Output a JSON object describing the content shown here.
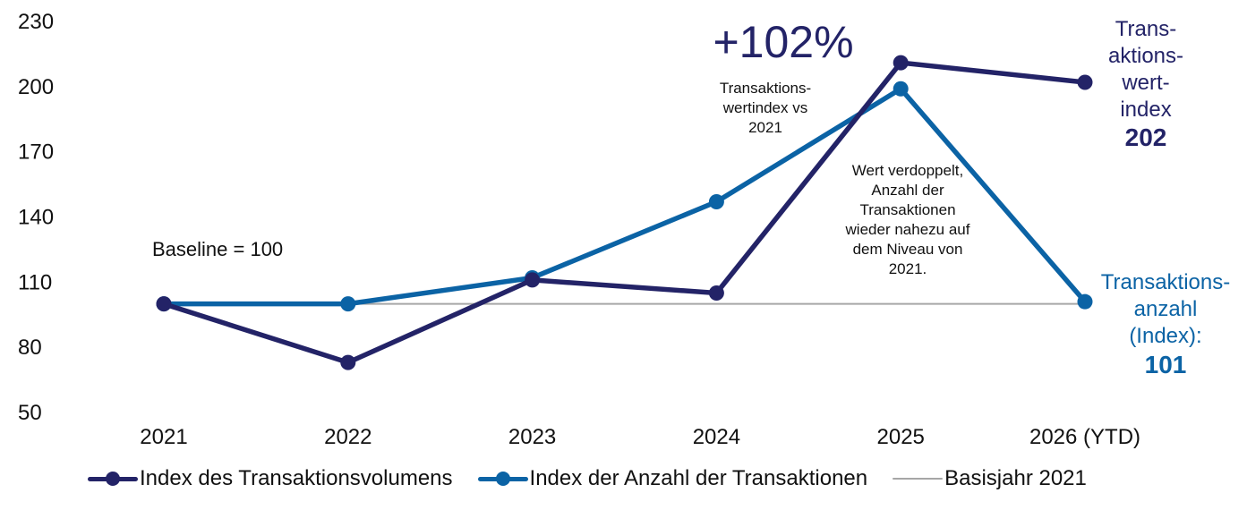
{
  "colors": {
    "volume": "#232367",
    "count": "#0B63A5",
    "baseline": "#A6A6A6",
    "text": "#111111"
  },
  "chart_data": {
    "type": "line",
    "categories": [
      "2021",
      "2022",
      "2023",
      "2024",
      "2025",
      "2026 (YTD)"
    ],
    "ylim": [
      50,
      230
    ],
    "yticks": [
      50,
      80,
      110,
      140,
      170,
      200,
      230
    ],
    "grid": false,
    "legend_position": "bottom",
    "series": [
      {
        "name": "Index des Transaktionsvolumens",
        "values": [
          100,
          73,
          111,
          105,
          211,
          202
        ],
        "color_key": "volume",
        "markers": true
      },
      {
        "name": "Index der Anzahl der Transaktionen",
        "values": [
          100,
          100,
          112,
          147,
          199,
          101
        ],
        "color_key": "count",
        "markers": true
      },
      {
        "name": "Basisjahr 2021",
        "values": [
          100,
          100,
          100,
          100,
          100,
          100
        ],
        "color_key": "baseline",
        "markers": false
      }
    ]
  },
  "annotations": {
    "baseline_text": "Baseline = 100",
    "big_value": "+102%",
    "big_value_caption": "Transaktions-\nwertindex vs\n2021",
    "middle_note": "Wert verdoppelt,\nAnzahl der\nTransaktionen\nwieder nahezu auf\ndem Niveau von\n2021.",
    "volume_end_label": "Trans-\naktions-\nwert-\nindex",
    "volume_end_value": "202",
    "count_end_label": "Transaktions-\nanzahl\n(Index):",
    "count_end_value": "101"
  }
}
